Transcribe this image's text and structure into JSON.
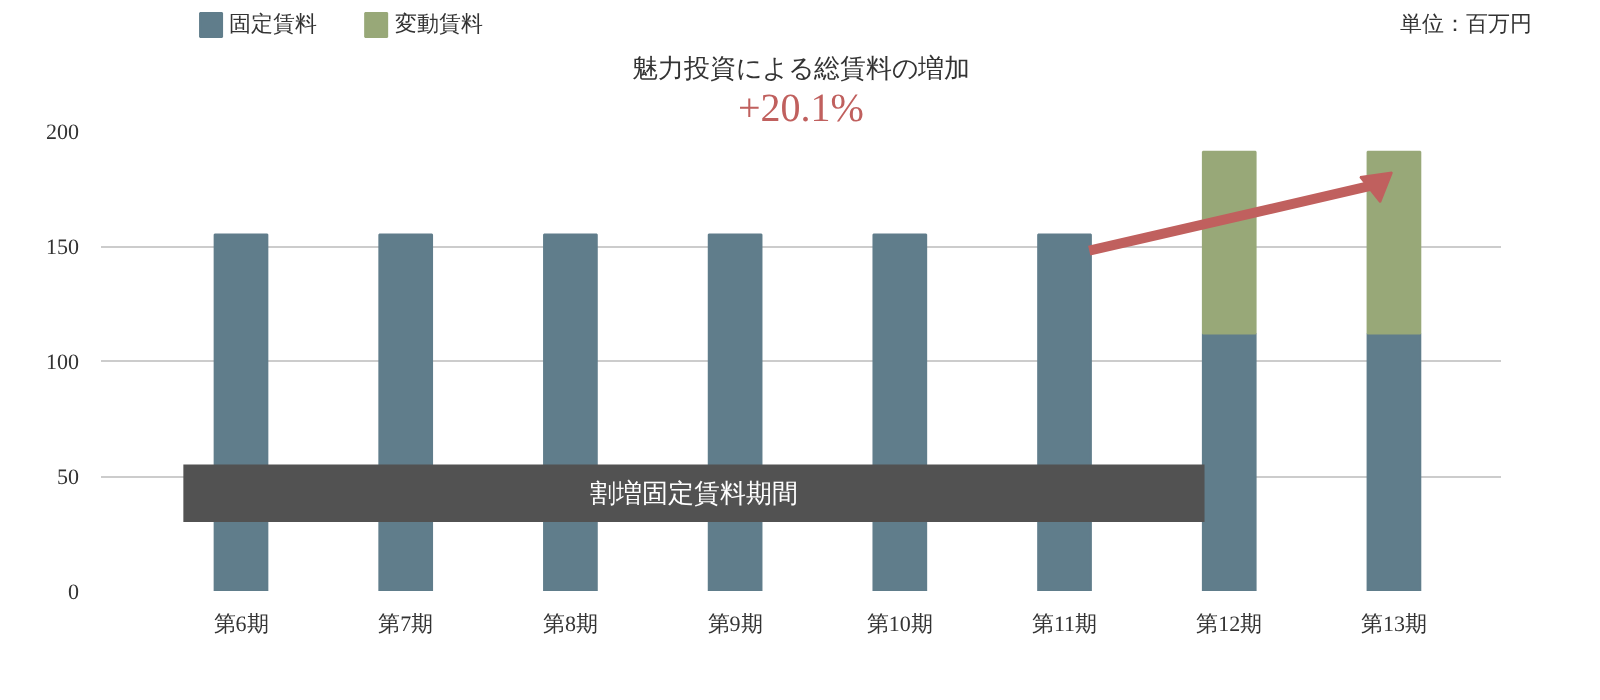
{
  "chart_data": {
    "type": "bar",
    "stacked": true,
    "categories": [
      "第6期",
      "第7期",
      "第8期",
      "第9期",
      "第10期",
      "第11期",
      "第12期",
      "第13期"
    ],
    "series": [
      {
        "name": "固定賃料",
        "color": "#607d8b",
        "values": [
          155,
          155,
          155,
          155,
          155,
          155,
          112,
          112
        ]
      },
      {
        "name": "変動賃料",
        "color": "#98a878",
        "values": [
          null,
          null,
          null,
          null,
          null,
          null,
          79,
          79
        ]
      }
    ],
    "ylim": [
      0,
      200
    ],
    "yticks": [
      0,
      50,
      100,
      150,
      200
    ],
    "grid": "y",
    "legend": "top left",
    "bands": [
      {
        "axis": "y",
        "from": 30,
        "to": 55,
        "label": "割増固定賃料期間",
        "color": "#525252"
      }
    ],
    "annotations": [
      "単位：百万円",
      "魅力投資による総賃料の増加",
      "+20.1%"
    ]
  }
}
